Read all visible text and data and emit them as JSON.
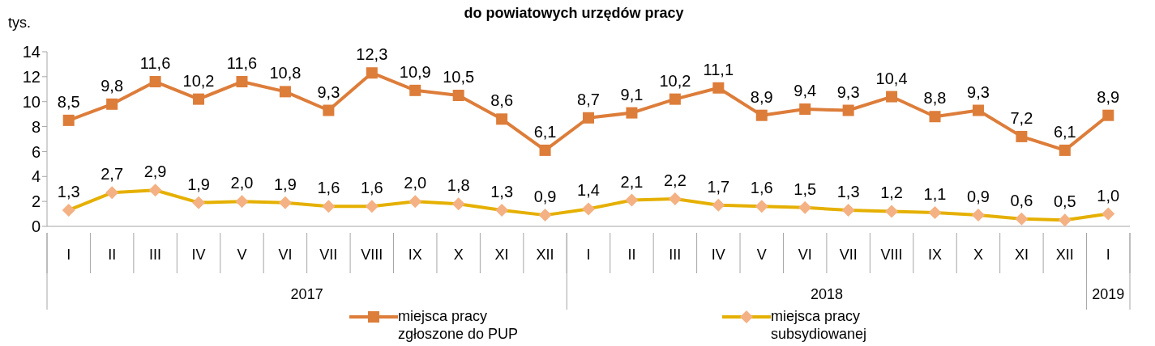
{
  "chart_data": {
    "type": "line",
    "title": "do powiatowych urzędów pracy",
    "ylabel": "tys.",
    "categories": [
      "I",
      "II",
      "III",
      "IV",
      "V",
      "VI",
      "VII",
      "VIII",
      "IX",
      "X",
      "XI",
      "XII",
      "I",
      "II",
      "III",
      "IV",
      "V",
      "VI",
      "VII",
      "VIII",
      "IX",
      "X",
      "XI",
      "XII",
      "I"
    ],
    "annotations": [
      "2017",
      "2018",
      "2019"
    ],
    "series": [
      {
        "name": "miejsca pracy zgłoszone do PUP",
        "color": "#dd7d3a",
        "marker": "square",
        "values": [
          8.5,
          9.8,
          11.6,
          10.2,
          11.6,
          10.8,
          9.3,
          12.3,
          10.9,
          10.5,
          8.6,
          6.1,
          8.7,
          9.1,
          10.2,
          11.1,
          8.9,
          9.4,
          9.3,
          10.4,
          8.8,
          9.3,
          7.2,
          6.1,
          8.9
        ],
        "value_labels": [
          "8,5",
          "9,8",
          "11,6",
          "10,2",
          "11,6",
          "10,8",
          "9,3",
          "12,3",
          "10,9",
          "10,5",
          "8,6",
          "6,1",
          "8,7",
          "9,1",
          "10,2",
          "11,1",
          "8,9",
          "9,4",
          "9,3",
          "10,4",
          "8,8",
          "9,3",
          "7,2",
          "6,1",
          "8,9"
        ]
      },
      {
        "name": "miejsca pracy subsydiowanej",
        "color": "#e5b000",
        "marker": "diamond",
        "values": [
          1.3,
          2.7,
          2.9,
          1.9,
          2.0,
          1.9,
          1.6,
          1.6,
          2.0,
          1.8,
          1.3,
          0.9,
          1.4,
          2.1,
          2.2,
          1.7,
          1.6,
          1.5,
          1.3,
          1.2,
          1.1,
          0.9,
          0.6,
          0.5,
          1.0
        ],
        "value_labels": [
          "1,3",
          "2,7",
          "2,9",
          "1,9",
          "2,0",
          "1,9",
          "1,6",
          "1,6",
          "2,0",
          "1,8",
          "1,3",
          "0,9",
          "1,4",
          "2,1",
          "2,2",
          "1,7",
          "1,6",
          "1,5",
          "1,3",
          "1,2",
          "1,1",
          "0,9",
          "0,6",
          "0,5",
          "1,0"
        ]
      }
    ],
    "ylim": [
      0,
      14
    ],
    "yticks": [
      0,
      2,
      4,
      6,
      8,
      10,
      12,
      14
    ],
    "grid": false,
    "legend": "bottom",
    "line_style": "solid"
  }
}
